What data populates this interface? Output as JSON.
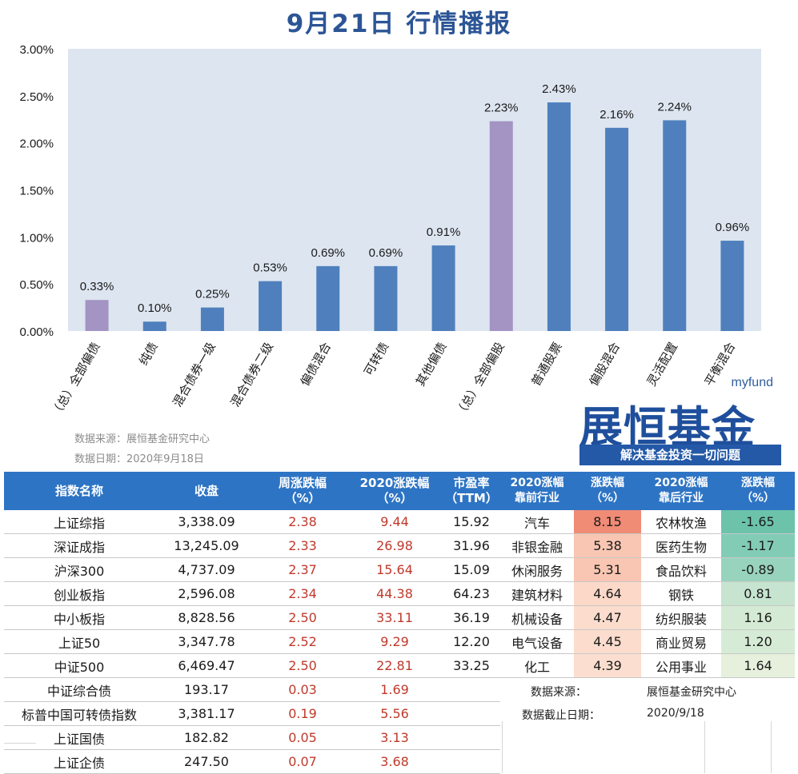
{
  "title": "9月21日  行情播报",
  "chart_data": {
    "type": "bar",
    "categories": [
      "（总）全部偏债",
      "纯债",
      "混合债券一级",
      "混合债券二级",
      "偏债混合",
      "可转债",
      "其他偏债",
      "（总）全部偏股",
      "普通股票",
      "偏股混合",
      "灵活配置",
      "平衡混合"
    ],
    "values": [
      0.33,
      0.1,
      0.25,
      0.53,
      0.69,
      0.69,
      0.91,
      2.23,
      2.43,
      2.16,
      2.24,
      0.96
    ],
    "data_labels": [
      "0.33%",
      "0.10%",
      "0.25%",
      "0.53%",
      "0.69%",
      "0.69%",
      "0.91%",
      "2.23%",
      "2.43%",
      "2.16%",
      "2.24%",
      "0.96%"
    ],
    "ylim": [
      0,
      3
    ],
    "yticks": [
      "0.00%",
      "0.50%",
      "1.00%",
      "1.50%",
      "2.00%",
      "2.50%",
      "3.00%"
    ],
    "colors": {
      "summary": "#a394c4",
      "normal": "#4f80bd",
      "plot_bg": "#dde5f0"
    },
    "summary_indices": [
      0,
      7
    ]
  },
  "source": {
    "line1": "数据来源：展恒基金研究中心",
    "line2": "数据日期：2020年9月18日"
  },
  "logo": {
    "brand": "myfund",
    "name": "展恒基金",
    "slogan": "解决基金投资一切问题"
  },
  "index_table": {
    "headers": [
      "指数名称",
      "收盘",
      "周涨跌幅\n（%）",
      "2020涨跌幅\n（%）",
      "市盈率\n（TTM）"
    ],
    "rows": [
      [
        "上证综指",
        "3,338.09",
        "2.38",
        "9.44",
        "15.92"
      ],
      [
        "深证成指",
        "13,245.09",
        "2.33",
        "26.98",
        "31.96"
      ],
      [
        "沪深300",
        "4,737.09",
        "2.37",
        "15.64",
        "15.09"
      ],
      [
        "创业板指",
        "2,596.08",
        "2.34",
        "44.38",
        "64.23"
      ],
      [
        "中小板指",
        "8,828.56",
        "2.50",
        "33.11",
        "36.19"
      ],
      [
        "上证50",
        "3,347.78",
        "2.52",
        "9.29",
        "12.20"
      ],
      [
        "中证500",
        "6,469.47",
        "2.50",
        "22.81",
        "33.25"
      ],
      [
        "中证综合债",
        "193.17",
        "0.03",
        "1.69",
        ""
      ],
      [
        "标普中国可转债指数",
        "3,381.17",
        "0.19",
        "5.56",
        ""
      ],
      [
        "上证国债",
        "182.82",
        "0.05",
        "3.13",
        ""
      ],
      [
        "上证企债",
        "247.50",
        "0.07",
        "3.68",
        ""
      ]
    ]
  },
  "industry_table": {
    "headers": [
      "2020涨幅\n靠前行业",
      "涨跌幅\n（%）",
      "2020涨幅\n靠后行业",
      "涨跌幅\n（%）"
    ],
    "rows": [
      [
        "汽车",
        "8.15",
        "农林牧渔",
        "-1.65"
      ],
      [
        "非银金融",
        "5.38",
        "医药生物",
        "-1.17"
      ],
      [
        "休闲服务",
        "5.31",
        "食品饮料",
        "-0.89"
      ],
      [
        "建筑材料",
        "4.64",
        "钢铁",
        "0.81"
      ],
      [
        "机械设备",
        "4.47",
        "纺织服装",
        "1.16"
      ],
      [
        "电气设备",
        "4.45",
        "商业贸易",
        "1.20"
      ],
      [
        "化工",
        "4.39",
        "公用事业",
        "1.64"
      ]
    ],
    "top_colors": [
      "#f08b76",
      "#f8c6b2",
      "#f8c6b2",
      "#fbd8c8",
      "#fbdccd",
      "#fbdccd",
      "#fbdecf"
    ],
    "bottom_colors": [
      "#6cc3aa",
      "#82ccb6",
      "#98d3be",
      "#c6e4cf",
      "#d4ead4",
      "#d6ebd6",
      "#e6f0dc"
    ]
  },
  "footer": {
    "source_label": "数据来源：",
    "source_value": "展恒基金研究中心",
    "date_label": "数据截止日期：",
    "date_value": "2020/9/18"
  }
}
